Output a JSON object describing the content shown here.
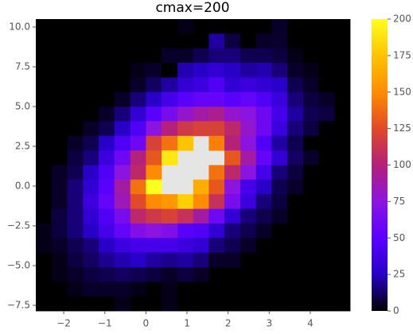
{
  "chart_data": {
    "type": "hist2d",
    "title": "cmax=200",
    "xbins": [
      -2.68,
      -2.3,
      -1.91,
      -1.53,
      -1.15,
      -0.77,
      -0.38,
      0.0,
      0.38,
      0.77,
      1.15,
      1.53,
      1.91,
      2.3,
      2.68,
      3.06,
      3.44,
      3.83,
      4.21,
      4.59,
      4.97
    ],
    "ybins": [
      10.5,
      9.58,
      8.67,
      7.75,
      6.83,
      5.91,
      4.99,
      4.08,
      3.16,
      2.24,
      1.32,
      0.41,
      -0.51,
      -1.43,
      -2.35,
      -3.26,
      -4.18,
      -5.1,
      -6.02,
      -6.93,
      -7.85
    ],
    "values": [
      [
        0,
        0,
        0,
        0,
        0,
        0,
        0,
        0,
        0,
        3,
        0,
        0,
        0,
        0,
        0,
        5,
        0,
        0,
        0,
        0
      ],
      [
        0,
        0,
        0,
        0,
        0,
        0,
        0,
        0,
        0,
        0,
        0,
        20,
        8,
        0,
        5,
        6,
        0,
        0,
        0,
        0
      ],
      [
        0,
        0,
        0,
        0,
        0,
        0,
        0,
        0,
        5,
        5,
        10,
        15,
        15,
        10,
        10,
        8,
        3,
        0,
        0,
        0
      ],
      [
        0,
        0,
        0,
        0,
        0,
        0,
        3,
        5,
        0,
        22,
        25,
        30,
        25,
        20,
        22,
        15,
        5,
        3,
        0,
        0
      ],
      [
        0,
        0,
        0,
        0,
        0,
        0,
        5,
        12,
        20,
        30,
        35,
        45,
        30,
        35,
        30,
        25,
        10,
        5,
        0,
        0
      ],
      [
        0,
        0,
        0,
        0,
        0,
        5,
        15,
        25,
        40,
        50,
        55,
        55,
        50,
        55,
        45,
        35,
        15,
        8,
        5,
        0
      ],
      [
        0,
        0,
        0,
        0,
        5,
        15,
        30,
        50,
        65,
        80,
        90,
        95,
        80,
        75,
        60,
        40,
        20,
        10,
        8,
        0
      ],
      [
        0,
        0,
        0,
        5,
        10,
        25,
        45,
        75,
        100,
        115,
        120,
        120,
        105,
        80,
        60,
        35,
        15,
        8,
        0,
        0
      ],
      [
        0,
        0,
        5,
        10,
        25,
        45,
        60,
        120,
        140,
        175,
        null,
        145,
        100,
        75,
        45,
        20,
        10,
        0,
        0,
        0
      ],
      [
        0,
        0,
        8,
        15,
        35,
        60,
        100,
        130,
        190,
        null,
        null,
        null,
        130,
        90,
        55,
        30,
        12,
        5,
        0,
        0
      ],
      [
        0,
        5,
        10,
        25,
        45,
        75,
        105,
        150,
        null,
        null,
        null,
        140,
        105,
        75,
        40,
        15,
        8,
        0,
        0,
        0
      ],
      [
        0,
        5,
        15,
        30,
        50,
        90,
        140,
        200,
        null,
        null,
        165,
        130,
        75,
        40,
        25,
        10,
        5,
        0,
        0,
        0
      ],
      [
        0,
        5,
        15,
        35,
        55,
        85,
        125,
        150,
        155,
        180,
        150,
        110,
        65,
        35,
        15,
        8,
        0,
        0,
        0,
        0
      ],
      [
        0,
        8,
        15,
        30,
        45,
        65,
        105,
        115,
        120,
        110,
        90,
        60,
        30,
        15,
        10,
        5,
        0,
        0,
        0,
        0
      ],
      [
        3,
        8,
        15,
        25,
        40,
        55,
        70,
        75,
        70,
        50,
        45,
        30,
        15,
        10,
        5,
        0,
        0,
        0,
        0,
        0
      ],
      [
        3,
        5,
        10,
        15,
        25,
        35,
        40,
        40,
        40,
        35,
        30,
        15,
        10,
        5,
        0,
        0,
        0,
        0,
        0,
        0
      ],
      [
        0,
        3,
        8,
        12,
        18,
        22,
        25,
        20,
        18,
        20,
        15,
        5,
        5,
        0,
        0,
        0,
        0,
        0,
        0,
        0
      ],
      [
        0,
        3,
        5,
        8,
        10,
        12,
        10,
        8,
        5,
        8,
        5,
        0,
        0,
        0,
        0,
        0,
        0,
        0,
        0,
        0
      ],
      [
        0,
        0,
        3,
        5,
        5,
        5,
        3,
        0,
        3,
        0,
        0,
        0,
        0,
        0,
        0,
        0,
        0,
        0,
        0,
        0
      ],
      [
        0,
        0,
        0,
        0,
        0,
        3,
        0,
        0,
        3,
        0,
        0,
        0,
        0,
        0,
        0,
        0,
        0,
        0,
        0,
        0
      ]
    ],
    "xlim": [
      -2.68,
      4.97
    ],
    "ylim": [
      -7.85,
      10.5
    ],
    "xticks": [
      {
        "value": -2,
        "label": "−2"
      },
      {
        "value": -1,
        "label": "−1"
      },
      0,
      1,
      2,
      3,
      4
    ],
    "yticks": [
      {
        "value": -7.5,
        "label": "−7.5"
      },
      {
        "value": -5,
        "label": "−5.0"
      },
      {
        "value": -2.5,
        "label": "−2.5"
      },
      {
        "value": 0,
        "label": "0.0"
      },
      2.5,
      {
        "value": 5,
        "label": "5.0"
      },
      7.5,
      {
        "value": 10,
        "label": "10.0"
      }
    ],
    "clim": [
      0,
      200
    ],
    "cticks": [
      0,
      25,
      50,
      75,
      100,
      125,
      150,
      175,
      200
    ],
    "colormap": [
      "#000000",
      "#2800c8",
      "#5a00ff",
      "#8c14e0",
      "#b4207a",
      "#e04a28",
      "#ff8c00",
      "#ffc400",
      "#ffff20"
    ],
    "background": "#e5e5e5"
  }
}
